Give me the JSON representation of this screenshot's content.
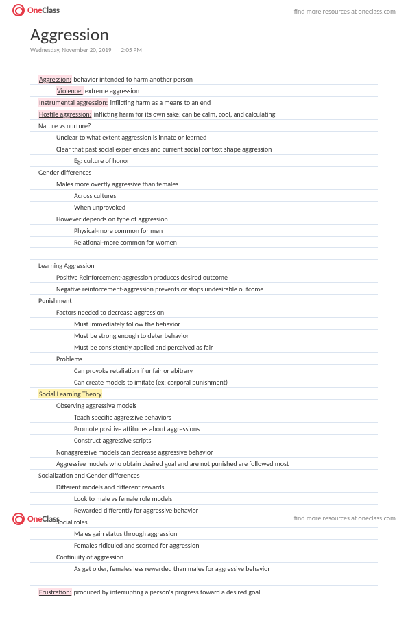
{
  "brand": {
    "part1": "One",
    "part2": "Class"
  },
  "watermark": "find more resources at oneclass.com",
  "title": "Aggression",
  "date": "Wednesday, November 20, 2019",
  "time": "2:05 PM",
  "lines": {
    "r0a": "Aggression:",
    "r0b": " behavior intended to harm another person",
    "r1a": "Violence:",
    "r1b": " extreme aggression",
    "r2a": "Instrumental aggression:",
    "r2b": " inflicting harm as a means to an end",
    "r3a": "Hostile aggression:",
    "r3b": " inflicting harm for its own sake; can be calm, cool, and calculating",
    "r4": "Nature vs nurture?",
    "r5": "Unclear to what extent aggression is innate or learned",
    "r6": "Clear that past social experiences and current social context shape aggression",
    "r7": "Eg: culture of honor",
    "r8": "Gender differences",
    "r9": "Males more overtly aggressive than females",
    "r10": "Across cultures",
    "r11": "When unprovoked",
    "r12": "However depends on type of aggression",
    "r13": "Physical-more common for men",
    "r14": "Relational-more common for women",
    "r15": "Learning Aggression",
    "r16": "Positive Reinforcement-aggression produces desired outcome",
    "r17": "Negative reinforcement-aggression prevents or stops undesirable outcome",
    "r18": "Punishment",
    "r19": "Factors needed to decrease aggression",
    "r20": "Must immediately follow the behavior",
    "r21": "Must be strong enough to deter behavior",
    "r22": "Must be consistently applied and perceived as fair",
    "r23": "Problems",
    "r24": "Can provoke retaliation if unfair or abitrary",
    "r25": "Can create models to imitate (ex: corporal punishment)",
    "r26": "Social Learning Theory",
    "r27": "Observing aggressive models",
    "r28": "Teach specific aggressive behaviors",
    "r29": "Promote positive attitudes about aggressions",
    "r30": "Construct aggressive scripts",
    "r31": "Nonaggressive models can decrease aggressive behavior",
    "r32": "Aggressive models who obtain desired goal and are not punished are followed most",
    "r33": "Socialization and Gender differences",
    "r34": "Different models and different rewards",
    "r35": "Look to male vs female role models",
    "r36": "Rewarded differently for aggressive behavior",
    "r37": "Social roles",
    "r38": "Males gain status through aggression",
    "r39": "Females ridiculed and scorned for aggression",
    "r40": "Continuity of aggression",
    "r41": "As get older, females less rewarded than males for aggressive behavior",
    "r42a": "Frustration:",
    "r42b": " produced by interrupting a person's progress toward a desired goal"
  }
}
